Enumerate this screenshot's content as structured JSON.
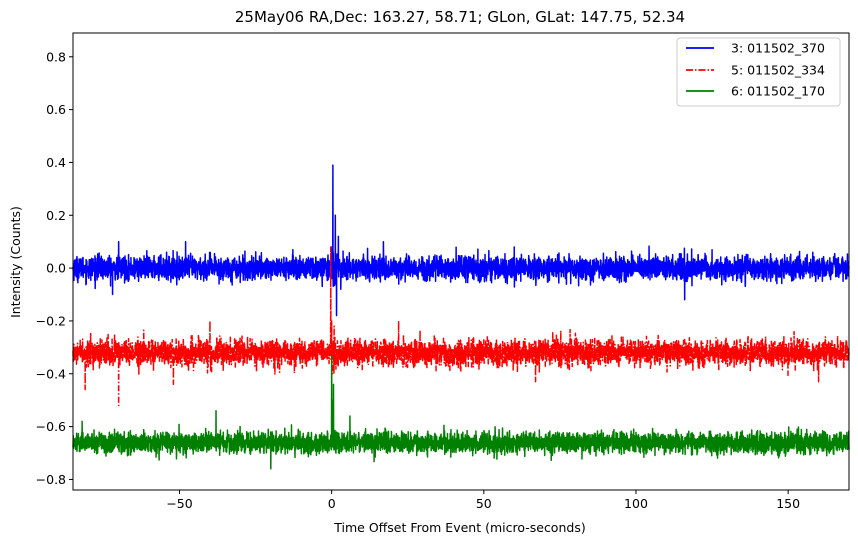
{
  "chart_data": {
    "type": "line",
    "title": "25May06 RA,Dec:  163.27,  58.71; GLon, GLat:  147.75,  52.34",
    "xlabel": "Time Offset From Event (micro-seconds)",
    "ylabel": "Intensity (Counts)",
    "xlim": [
      -85,
      170
    ],
    "ylim": [
      -0.84,
      0.89
    ],
    "xticks": [
      -50,
      0,
      50,
      100,
      150
    ],
    "xtick_labels": [
      "−50",
      "0",
      "50",
      "100",
      "150"
    ],
    "yticks": [
      -0.8,
      -0.6,
      -0.4,
      -0.2,
      0.0,
      0.2,
      0.4,
      0.6,
      0.8
    ],
    "ytick_labels": [
      "−0.8",
      "−0.6",
      "−0.4",
      "−0.2",
      "0.0",
      "0.2",
      "0.4",
      "0.6",
      "0.8"
    ],
    "legend_position": "top-right",
    "series": [
      {
        "name": "3: 011502_370",
        "color": "#0000ff",
        "style": "solid",
        "baseline": 0.0,
        "noise": 0.04,
        "spikes": [
          [
            0.0,
            0.08
          ],
          [
            0.4,
            0.39
          ],
          [
            0.8,
            -0.05
          ],
          [
            1.2,
            0.2
          ],
          [
            1.6,
            -0.18
          ],
          [
            2.2,
            0.12
          ],
          [
            3.0,
            -0.08
          ]
        ],
        "outliers": [
          [
            -70,
            0.1
          ],
          [
            -48,
            0.1
          ],
          [
            -72,
            -0.1
          ],
          [
            60,
            0.08
          ],
          [
            116,
            -0.12
          ],
          [
            17,
            0.1
          ],
          [
            -37,
            -0.06
          ]
        ]
      },
      {
        "name": "5: 011502_334",
        "color": "#ff0000",
        "style": "dashdot",
        "baseline": -0.32,
        "noise": 0.045,
        "spikes": [
          [
            -0.3,
            0.08
          ],
          [
            0.0,
            -0.2
          ],
          [
            0.3,
            -0.4
          ],
          [
            0.8,
            -0.22
          ]
        ],
        "outliers": [
          [
            -70,
            -0.52
          ],
          [
            -40,
            -0.2
          ],
          [
            22,
            -0.2
          ],
          [
            -81,
            -0.46
          ],
          [
            -52,
            -0.44
          ],
          [
            67,
            -0.43
          ],
          [
            160,
            -0.43
          ]
        ]
      },
      {
        "name": "6: 011502_170",
        "color": "#008000",
        "style": "solid",
        "baseline": -0.66,
        "noise": 0.035,
        "spikes": [
          [
            0.0,
            -0.33
          ],
          [
            0.2,
            -0.62
          ],
          [
            0.4,
            -0.5
          ],
          [
            0.6,
            -0.44
          ]
        ],
        "outliers": [
          [
            -38,
            -0.54
          ],
          [
            6,
            -0.56
          ],
          [
            -82,
            -0.58
          ],
          [
            -20,
            -0.76
          ]
        ]
      }
    ]
  }
}
